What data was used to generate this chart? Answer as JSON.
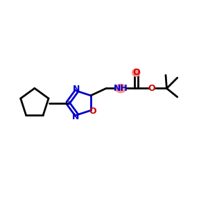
{
  "bg_color": "#ffffff",
  "bond_color": "#000000",
  "n_color": "#0000cc",
  "o_color": "#cc0000",
  "nh_bg_color": "#ff8888",
  "figsize": [
    3.0,
    3.0
  ],
  "dpi": 100,
  "xlim": [
    0,
    10
  ],
  "ylim": [
    2,
    8
  ]
}
